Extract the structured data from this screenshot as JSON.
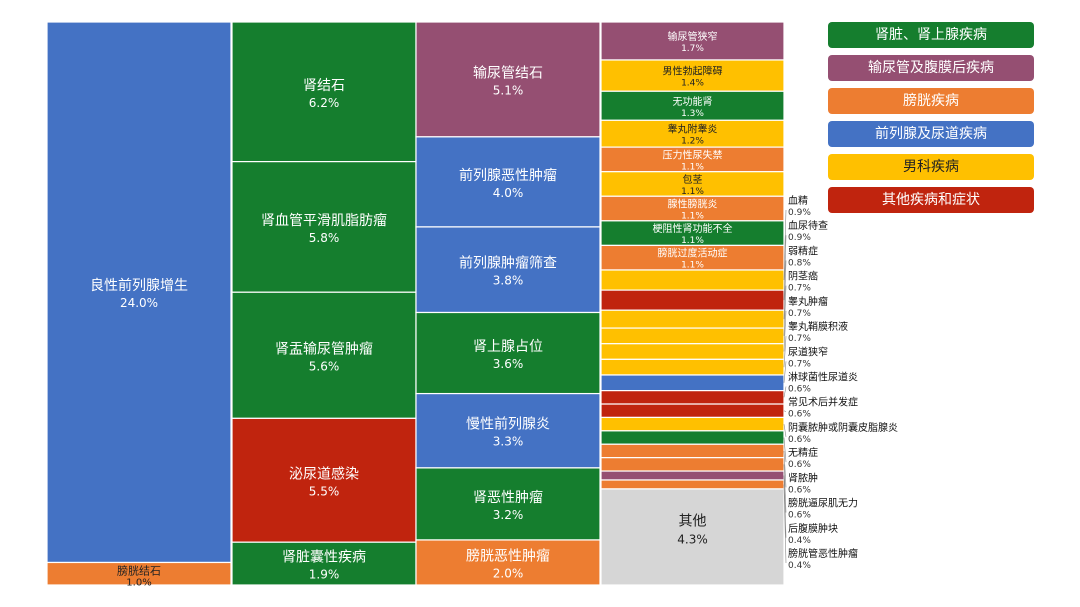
{
  "chart_data": {
    "type": "treemap",
    "categories": {
      "kidney": {
        "name": "肾脏、肾上腺疾病",
        "color": "#157E2E"
      },
      "ureter": {
        "name": "输尿管及腹膜后疾病",
        "color": "#954F72"
      },
      "bladder": {
        "name": "膀胱疾病",
        "color": "#ED7D31"
      },
      "prostate": {
        "name": "前列腺及尿道疾病",
        "color": "#4472C4"
      },
      "male": {
        "name": "男科疾病",
        "color": "#FFC000"
      },
      "other": {
        "name": "其他疾病和症状",
        "color": "#C0240E"
      },
      "misc": {
        "name": "",
        "color": "#D6D6D6"
      }
    },
    "legend_order": [
      "kidney",
      "ureter",
      "bladder",
      "prostate",
      "male",
      "other"
    ],
    "columns": [
      {
        "items": [
          {
            "label": "良性前列腺增生",
            "value": 24.0,
            "value_label": "24.0%",
            "category": "prostate"
          },
          {
            "label": "膀胱结石",
            "value": 1.0,
            "value_label": "1.0%",
            "category": "bladder"
          }
        ]
      },
      {
        "items": [
          {
            "label": "肾结石",
            "value": 6.2,
            "value_label": "6.2%",
            "category": "kidney"
          },
          {
            "label": "肾血管平滑肌脂肪瘤",
            "value": 5.8,
            "value_label": "5.8%",
            "category": "kidney"
          },
          {
            "label": "肾盂输尿管肿瘤",
            "value": 5.6,
            "value_label": "5.6%",
            "category": "kidney"
          },
          {
            "label": "泌尿道感染",
            "value": 5.5,
            "value_label": "5.5%",
            "category": "other"
          },
          {
            "label": "肾脏囊性疾病",
            "value": 1.9,
            "value_label": "1.9%",
            "category": "kidney"
          }
        ]
      },
      {
        "items": [
          {
            "label": "输尿管结石",
            "value": 5.1,
            "value_label": "5.1%",
            "category": "ureter"
          },
          {
            "label": "前列腺恶性肿瘤",
            "value": 4.0,
            "value_label": "4.0%",
            "category": "prostate"
          },
          {
            "label": "前列腺肿瘤筛查",
            "value": 3.8,
            "value_label": "3.8%",
            "category": "prostate"
          },
          {
            "label": "肾上腺占位",
            "value": 3.6,
            "value_label": "3.6%",
            "category": "kidney"
          },
          {
            "label": "慢性前列腺炎",
            "value": 3.3,
            "value_label": "3.3%",
            "category": "prostate"
          },
          {
            "label": "肾恶性肿瘤",
            "value": 3.2,
            "value_label": "3.2%",
            "category": "kidney"
          },
          {
            "label": "膀胱恶性肿瘤",
            "value": 2.0,
            "value_label": "2.0%",
            "category": "bladder"
          }
        ]
      },
      {
        "items": [
          {
            "label": "输尿管狭窄",
            "value": 1.7,
            "value_label": "1.7%",
            "category": "ureter"
          },
          {
            "label": "男性勃起障碍",
            "value": 1.4,
            "value_label": "1.4%",
            "category": "male"
          },
          {
            "label": "无功能肾",
            "value": 1.3,
            "value_label": "1.3%",
            "category": "kidney"
          },
          {
            "label": "睾丸附睾炎",
            "value": 1.2,
            "value_label": "1.2%",
            "category": "male"
          },
          {
            "label": "压力性尿失禁",
            "value": 1.1,
            "value_label": "1.1%",
            "category": "bladder"
          },
          {
            "label": "包茎",
            "value": 1.1,
            "value_label": "1.1%",
            "category": "male"
          },
          {
            "label": "腺性膀胱炎",
            "value": 1.1,
            "value_label": "1.1%",
            "category": "bladder"
          },
          {
            "label": "梗阻性肾功能不全",
            "value": 1.1,
            "value_label": "1.1%",
            "category": "kidney"
          },
          {
            "label": "膀胱过度活动症",
            "value": 1.1,
            "value_label": "1.1%",
            "category": "bladder"
          },
          {
            "label": "血精",
            "value": 0.9,
            "value_label": "0.9%",
            "category": "male",
            "external": true
          },
          {
            "label": "血尿待查",
            "value": 0.9,
            "value_label": "0.9%",
            "category": "other",
            "external": true
          },
          {
            "label": "弱精症",
            "value": 0.8,
            "value_label": "0.8%",
            "category": "male",
            "external": true
          },
          {
            "label": "阴茎癌",
            "value": 0.7,
            "value_label": "0.7%",
            "category": "male",
            "external": true
          },
          {
            "label": "睾丸肿瘤",
            "value": 0.7,
            "value_label": "0.7%",
            "category": "male",
            "external": true
          },
          {
            "label": "睾丸鞘膜积液",
            "value": 0.7,
            "value_label": "0.7%",
            "category": "male",
            "external": true
          },
          {
            "label": "尿道狭窄",
            "value": 0.7,
            "value_label": "0.7%",
            "category": "prostate",
            "external": true
          },
          {
            "label": "淋球菌性尿道炎",
            "value": 0.6,
            "value_label": "0.6%",
            "category": "other",
            "external": true
          },
          {
            "label": "常见术后并发症",
            "value": 0.6,
            "value_label": "0.6%",
            "category": "other",
            "external": true
          },
          {
            "label": "阴囊脓肿或阴囊皮脂腺炎",
            "value": 0.6,
            "value_label": "0.6%",
            "category": "male",
            "external": true
          },
          {
            "label": "无精症",
            "value": 0.6,
            "value_label": "0.6%",
            "category": "kidney",
            "external": true
          },
          {
            "label": "肾脓肿",
            "value": 0.6,
            "value_label": "0.6%",
            "category": "bladder",
            "external": true
          },
          {
            "label": "膀胱逼尿肌无力",
            "value": 0.6,
            "value_label": "0.6%",
            "category": "bladder",
            "external": true
          },
          {
            "label": "后腹膜肿块",
            "value": 0.4,
            "value_label": "0.4%",
            "category": "ureter",
            "external": true
          },
          {
            "label": "膀胱管恶性肿瘤",
            "value": 0.4,
            "value_label": "0.4%",
            "category": "bladder",
            "external": true
          },
          {
            "label": "其他",
            "value": 4.3,
            "value_label": "4.3%",
            "category": "misc"
          }
        ]
      }
    ]
  }
}
